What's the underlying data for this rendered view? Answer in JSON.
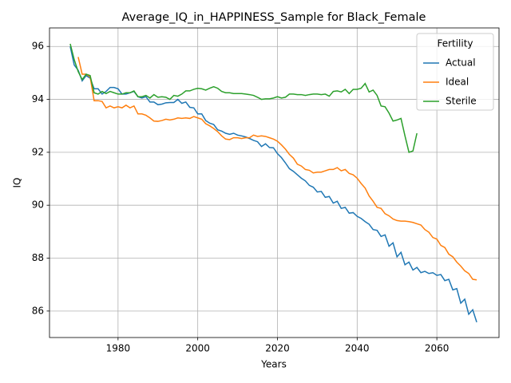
{
  "chart_data": {
    "type": "line",
    "title": "Average_IQ_in_HAPPINESS_Sample for Black_Female",
    "x_label": "Years",
    "y_label": "IQ",
    "legend_title": "Fertility",
    "legend_loc": "upper right",
    "grid": true,
    "xlim": [
      1962.8,
      2075.6
    ],
    "ylim": [
      85.0,
      96.7
    ],
    "xticks": [
      1980,
      2000,
      2020,
      2040,
      2060
    ],
    "yticks": [
      86,
      88,
      90,
      92,
      94,
      96
    ],
    "x": [
      1968,
      1969,
      1970,
      1971,
      1972,
      1973,
      1974,
      1975,
      1976,
      1977,
      1978,
      1979,
      1980,
      1981,
      1982,
      1983,
      1984,
      1985,
      1986,
      1987,
      1988,
      1989,
      1990,
      1991,
      1992,
      1993,
      1994,
      1995,
      1996,
      1997,
      1998,
      1999,
      2000,
      2001,
      2002,
      2003,
      2004,
      2005,
      2006,
      2007,
      2008,
      2009,
      2010,
      2011,
      2012,
      2013,
      2014,
      2015,
      2016,
      2017,
      2018,
      2019,
      2020,
      2021,
      2022,
      2023,
      2024,
      2025,
      2026,
      2027,
      2028,
      2029,
      2030,
      2031,
      2032,
      2033,
      2034,
      2035,
      2036,
      2037,
      2038,
      2039,
      2040,
      2041,
      2042,
      2043,
      2044,
      2045,
      2046,
      2047,
      2048,
      2049,
      2050,
      2051,
      2052,
      2053,
      2054,
      2055,
      2056,
      2057,
      2058,
      2059,
      2060,
      2061,
      2062,
      2063,
      2064,
      2065,
      2066,
      2067,
      2068,
      2069,
      2070
    ],
    "series": [
      {
        "name": "Actual",
        "color": "#1f77b4",
        "values": [
          96.0,
          95.3,
          95.1,
          94.7,
          94.9,
          94.8,
          94.4,
          94.4,
          94.2,
          94.3,
          94.45,
          94.45,
          94.4,
          94.2,
          94.2,
          94.25,
          94.3,
          94.1,
          94.05,
          94.1,
          93.9,
          93.9,
          93.8,
          93.82,
          93.87,
          93.88,
          93.88,
          94.0,
          93.85,
          93.9,
          93.7,
          93.68,
          93.45,
          93.45,
          93.2,
          93.1,
          93.05,
          92.85,
          92.8,
          92.72,
          92.68,
          92.72,
          92.65,
          92.62,
          92.58,
          92.52,
          92.45,
          92.4,
          92.22,
          92.32,
          92.18,
          92.17,
          91.95,
          91.8,
          91.6,
          91.38,
          91.28,
          91.15,
          91.02,
          90.92,
          90.75,
          90.68,
          90.5,
          90.52,
          90.3,
          90.33,
          90.08,
          90.15,
          89.88,
          89.92,
          89.7,
          89.72,
          89.58,
          89.5,
          89.38,
          89.28,
          89.08,
          89.05,
          88.82,
          88.88,
          88.45,
          88.58,
          88.05,
          88.22,
          87.75,
          87.85,
          87.55,
          87.65,
          87.45,
          87.5,
          87.42,
          87.45,
          87.35,
          87.38,
          87.15,
          87.2,
          86.8,
          86.85,
          86.3,
          86.45,
          85.88,
          86.05,
          85.58
        ]
      },
      {
        "name": "Ideal",
        "color": "#ff7f0e",
        "values": [
          null,
          null,
          95.6,
          94.95,
          94.95,
          94.85,
          93.95,
          93.95,
          93.92,
          93.68,
          93.75,
          93.68,
          93.72,
          93.68,
          93.78,
          93.68,
          93.75,
          93.45,
          93.45,
          93.4,
          93.3,
          93.18,
          93.17,
          93.2,
          93.25,
          93.22,
          93.25,
          93.3,
          93.28,
          93.3,
          93.28,
          93.35,
          93.3,
          93.25,
          93.08,
          93.0,
          92.9,
          92.78,
          92.62,
          92.5,
          92.48,
          92.55,
          92.55,
          92.52,
          92.55,
          92.55,
          92.65,
          92.6,
          92.62,
          92.6,
          92.55,
          92.5,
          92.42,
          92.28,
          92.12,
          91.92,
          91.78,
          91.55,
          91.48,
          91.35,
          91.32,
          91.22,
          91.25,
          91.25,
          91.3,
          91.35,
          91.35,
          91.42,
          91.3,
          91.35,
          91.2,
          91.15,
          91.02,
          90.82,
          90.65,
          90.35,
          90.15,
          89.92,
          89.88,
          89.68,
          89.6,
          89.48,
          89.42,
          89.4,
          89.4,
          89.38,
          89.35,
          89.3,
          89.25,
          89.08,
          88.98,
          88.78,
          88.72,
          88.48,
          88.4,
          88.15,
          88.05,
          87.85,
          87.7,
          87.52,
          87.42,
          87.2,
          87.18
        ]
      },
      {
        "name": "Sterile",
        "color": "#2ca02c",
        "values": [
          96.1,
          95.5,
          95.05,
          94.75,
          94.95,
          94.9,
          94.25,
          94.2,
          94.3,
          94.22,
          94.3,
          94.25,
          94.2,
          94.2,
          94.25,
          94.25,
          94.32,
          94.1,
          94.1,
          94.15,
          94.05,
          94.18,
          94.08,
          94.1,
          94.08,
          94.0,
          94.15,
          94.12,
          94.2,
          94.32,
          94.32,
          94.38,
          94.42,
          94.4,
          94.35,
          94.42,
          94.48,
          94.42,
          94.3,
          94.25,
          94.25,
          94.22,
          94.22,
          94.22,
          94.2,
          94.18,
          94.15,
          94.08,
          94.0,
          94.02,
          94.02,
          94.05,
          94.1,
          94.05,
          94.08,
          94.2,
          94.2,
          94.18,
          94.18,
          94.15,
          94.18,
          94.2,
          94.2,
          94.18,
          94.2,
          94.12,
          94.3,
          94.32,
          94.28,
          94.38,
          94.22,
          94.38,
          94.38,
          94.42,
          94.6,
          94.28,
          94.35,
          94.15,
          93.75,
          93.72,
          93.48,
          93.18,
          93.22,
          93.28,
          92.62,
          92.0,
          92.05,
          92.72,
          null,
          null,
          null,
          null,
          null,
          null,
          null,
          null,
          null,
          null,
          null,
          null,
          null,
          null,
          null
        ]
      }
    ]
  }
}
